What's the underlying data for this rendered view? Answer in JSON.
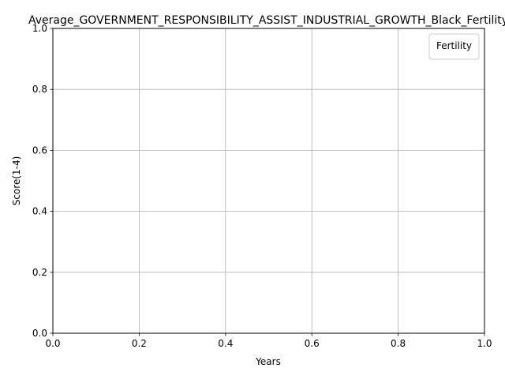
{
  "chart_data": {
    "type": "line",
    "title": "Average_GOVERNMENT_RESPONSIBILITY_ASSIST_INDUSTRIAL_GROWTH_Black_Fertility",
    "xlabel": "Years",
    "ylabel": "Score(1-4)",
    "xlim": [
      0.0,
      1.0
    ],
    "ylim": [
      0.0,
      1.0
    ],
    "xticks": [
      "0.0",
      "0.2",
      "0.4",
      "0.6",
      "0.8",
      "1.0"
    ],
    "yticks": [
      "0.0",
      "0.2",
      "0.4",
      "0.6",
      "0.8",
      "1.0"
    ],
    "grid": true,
    "legend": {
      "title": "Fertility",
      "placement": "top-right",
      "entries": []
    },
    "series": []
  }
}
